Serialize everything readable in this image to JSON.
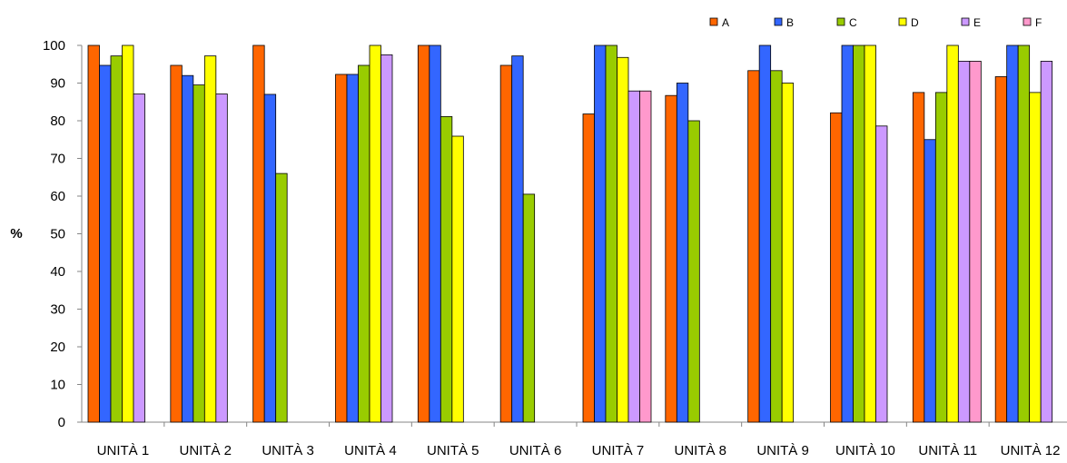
{
  "chart_data": {
    "type": "bar",
    "title": "",
    "xlabel": "",
    "ylabel": "%",
    "ylim": [
      0,
      100
    ],
    "yticks": [
      "0",
      "10",
      "20",
      "30",
      "40",
      "50",
      "60",
      "70",
      "80",
      "90",
      "100"
    ],
    "grid": false,
    "legend_position": "top-right",
    "categories": [
      "UNITÀ 1",
      "UNITÀ 2",
      "UNITÀ 3",
      "UNITÀ 4",
      "UNITÀ 5",
      "UNITÀ 6",
      "UNITÀ 7",
      "UNITÀ 8",
      "UNITÀ 9",
      "UNITÀ 10",
      "UNITÀ 11",
      "UNITÀ 12"
    ],
    "series": [
      {
        "name": "A",
        "color": "#FF6600",
        "values": [
          100,
          94.7,
          100,
          92.3,
          100,
          94.7,
          81.8,
          86.7,
          93.3,
          82.1,
          87.5,
          91.7
        ]
      },
      {
        "name": "B",
        "color": "#3366FF",
        "values": [
          94.7,
          92,
          87,
          92.3,
          100,
          97.2,
          100,
          90,
          100,
          100,
          75,
          100
        ]
      },
      {
        "name": "C",
        "color": "#99CC00",
        "values": [
          97.2,
          89.5,
          66,
          94.7,
          81.1,
          60.5,
          100,
          80,
          93.3,
          100,
          87.5,
          100
        ]
      },
      {
        "name": "D",
        "color": "#FFFF00",
        "values": [
          100,
          97.2,
          null,
          100,
          75.9,
          null,
          96.8,
          null,
          90,
          100,
          100,
          87.5
        ]
      },
      {
        "name": "E",
        "color": "#CC99FF",
        "values": [
          87.1,
          87.1,
          null,
          97.5,
          null,
          null,
          87.9,
          null,
          null,
          78.6,
          95.8,
          95.8
        ]
      },
      {
        "name": "F",
        "color": "#FF99CC",
        "values": [
          null,
          null,
          null,
          null,
          null,
          null,
          87.9,
          null,
          null,
          null,
          95.8,
          null
        ]
      }
    ]
  }
}
